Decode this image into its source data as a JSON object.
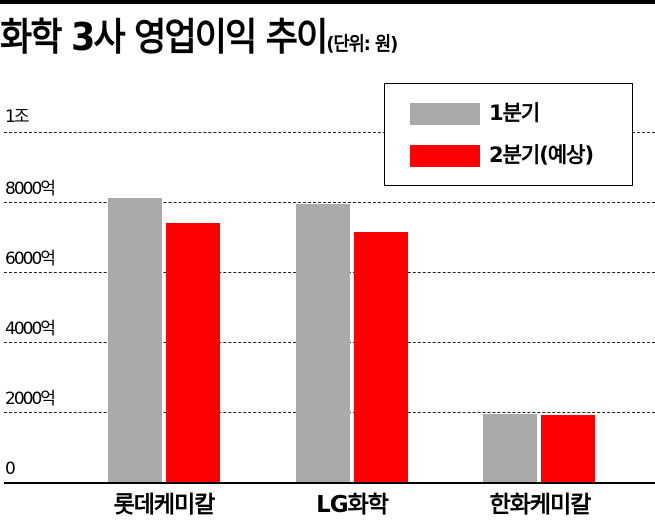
{
  "header": {
    "title": "화학 3사 영업이익 추이",
    "unit": "(단위: 원)"
  },
  "colors": {
    "q1": "#aaaaaa",
    "q2": "#ff0000"
  },
  "legend": [
    {
      "label": "1분기",
      "color": "#aaaaaa"
    },
    {
      "label": "2분기(예상)",
      "color": "#ff0000"
    }
  ],
  "axis": {
    "y_ticks": [
      "0",
      "2000억",
      "4000억",
      "6000억",
      "8000억",
      "1조"
    ],
    "x_labels": [
      "롯데케미칼",
      "LG화학",
      "한화케미칼"
    ]
  },
  "chart_data": {
    "type": "bar",
    "title": "화학 3사 영업이익 추이",
    "subtitle": "(단위: 원)",
    "xlabel": "",
    "ylabel": "",
    "categories": [
      "롯데케미칼",
      "LG화학",
      "한화케미칼"
    ],
    "series": [
      {
        "name": "1분기",
        "color": "#aaaaaa",
        "values": [
          8100,
          7950,
          1950
        ]
      },
      {
        "name": "2분기(예상)",
        "color": "#ff0000",
        "values": [
          7400,
          7150,
          1900
        ]
      }
    ],
    "value_unit": "억원",
    "ylim": [
      0,
      10000
    ],
    "y_tick_values": [
      0,
      2000,
      4000,
      6000,
      8000,
      10000
    ],
    "y_tick_labels": [
      "0",
      "2000억",
      "4000억",
      "6000억",
      "8000억",
      "1조"
    ],
    "grid": true,
    "legend_position": "top-right"
  }
}
